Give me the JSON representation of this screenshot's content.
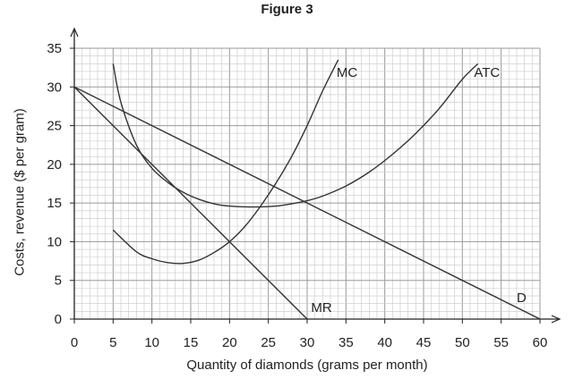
{
  "chart_data": {
    "type": "line",
    "title": "Figure 3",
    "xlabel": "Quantity of diamonds (grams per month)",
    "ylabel": "Costs, revenue ($ per gram)",
    "xlim": [
      0,
      60
    ],
    "ylim": [
      0,
      35
    ],
    "xticks": [
      0,
      5,
      10,
      15,
      20,
      25,
      30,
      35,
      40,
      45,
      50,
      55,
      60
    ],
    "yticks": [
      0,
      5,
      10,
      15,
      20,
      25,
      30,
      35
    ],
    "grid": true,
    "series": [
      {
        "name": "D",
        "x": [
          0,
          60
        ],
        "y": [
          30,
          0
        ],
        "color": "#333333"
      },
      {
        "name": "MR",
        "x": [
          0,
          30
        ],
        "y": [
          30,
          0
        ],
        "color": "#333333"
      },
      {
        "name": "MC",
        "x": [
          5,
          8,
          10,
          12,
          14,
          16,
          18,
          20,
          22,
          24,
          26,
          28,
          30,
          32,
          34
        ],
        "y": [
          11.5,
          8.7,
          7.8,
          7.3,
          7.2,
          7.6,
          8.6,
          10,
          12,
          14.6,
          17.6,
          21,
          25,
          29.5,
          33.5
        ],
        "color": "#333333"
      },
      {
        "name": "ATC",
        "x": [
          5,
          6,
          8,
          10,
          12,
          14,
          16,
          18,
          20,
          22,
          24,
          26,
          28,
          30,
          32,
          35,
          38,
          41,
          44,
          47,
          50,
          52
        ],
        "y": [
          33,
          28,
          22.5,
          19.5,
          17.7,
          16.4,
          15.5,
          14.9,
          14.6,
          14.5,
          14.5,
          14.6,
          14.9,
          15.3,
          15.9,
          17.2,
          19,
          21.3,
          24,
          27.2,
          31,
          33
        ],
        "color": "#333333"
      }
    ],
    "annotations": [
      {
        "text": "MC",
        "x": 33.8,
        "y": 31.3
      },
      {
        "text": "ATC",
        "x": 51.5,
        "y": 31.3
      },
      {
        "text": "MR",
        "x": 30.5,
        "y": 0.9
      },
      {
        "text": "D",
        "x": 57,
        "y": 2.2
      }
    ]
  }
}
